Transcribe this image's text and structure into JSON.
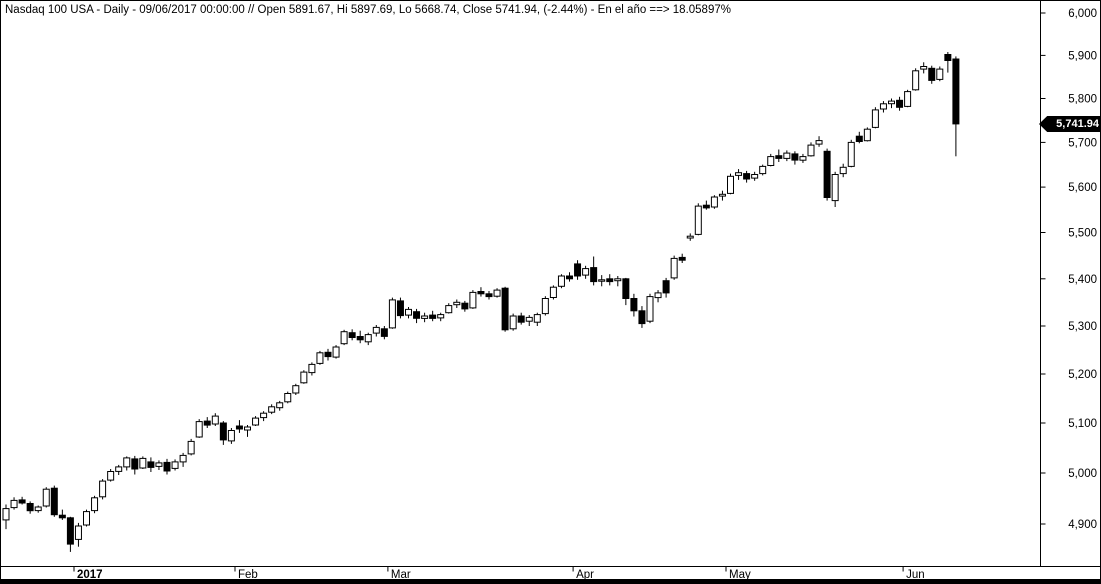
{
  "title": "Nasdaq 100 USA - Daily - 09/06/2017 00:00:00 // Open 5891.67, Hi 5897.69, Lo 5668.74, Close 5741.94, (-2.44%) - En el año ==> 18.05897%",
  "price_tag": "5,741.94",
  "colors": {
    "up_fill": "#ffffff",
    "down_fill": "#000000",
    "stroke": "#000000",
    "tag_bg": "#000000",
    "tag_text": "#ffffff",
    "axis_line": "#000000",
    "bottom_bar": "#000000",
    "background": "#ffffff"
  },
  "y_axis": {
    "side": "right",
    "scale": "logarithmic",
    "ticks": [
      {
        "label": "6,000",
        "value": 6000
      },
      {
        "label": "5,900",
        "value": 5900
      },
      {
        "label": "5,800",
        "value": 5800
      },
      {
        "label": "5,700",
        "value": 5700
      },
      {
        "label": "5,600",
        "value": 5600
      },
      {
        "label": "5,500",
        "value": 5500
      },
      {
        "label": "5,400",
        "value": 5400
      },
      {
        "label": "5,300",
        "value": 5300
      },
      {
        "label": "5,200",
        "value": 5200
      },
      {
        "label": "5,100",
        "value": 5100
      },
      {
        "label": "5,000",
        "value": 5000
      },
      {
        "label": "4,900",
        "value": 4900
      }
    ]
  },
  "x_axis": {
    "labels": [
      {
        "label": "2017",
        "index": 9,
        "bold": true
      },
      {
        "label": "Feb",
        "index": 29,
        "bold": false
      },
      {
        "label": "Mar",
        "index": 48,
        "bold": false
      },
      {
        "label": "Apr",
        "index": 71,
        "bold": false
      },
      {
        "label": "May",
        "index": 90,
        "bold": false
      },
      {
        "label": "Jun",
        "index": 112,
        "bold": false
      }
    ]
  },
  "chart_data": {
    "type": "candlestick",
    "symbol": "Nasdaq 100 USA",
    "timeframe": "Daily",
    "scale": "logarithmic",
    "ylim": [
      4840,
      6000
    ],
    "grid": false,
    "last_quote": {
      "date": "09/06/2017 00:00:00",
      "open": 5891.67,
      "high": 5897.69,
      "low": 5668.74,
      "close": 5741.94,
      "change_pct": -2.44,
      "ytd_pct": 18.05897
    },
    "ohlc": [
      [
        "2016-12-19",
        4908,
        4938,
        4890,
        4930
      ],
      [
        "2016-12-20",
        4932,
        4952,
        4928,
        4946
      ],
      [
        "2016-12-21",
        4947,
        4953,
        4938,
        4941
      ],
      [
        "2016-12-22",
        4940,
        4944,
        4920,
        4926
      ],
      [
        "2016-12-23",
        4926,
        4936,
        4922,
        4933
      ],
      [
        "2016-12-27",
        4935,
        4972,
        4932,
        4968
      ],
      [
        "2016-12-28",
        4970,
        4975,
        4914,
        4918
      ],
      [
        "2016-12-29",
        4917,
        4928,
        4908,
        4912
      ],
      [
        "2016-12-30",
        4912,
        4914,
        4846,
        4861
      ],
      [
        "2017-01-03",
        4870,
        4902,
        4856,
        4896
      ],
      [
        "2017-01-04",
        4898,
        4928,
        4895,
        4924
      ],
      [
        "2017-01-05",
        4926,
        4955,
        4921,
        4951
      ],
      [
        "2017-01-06",
        4953,
        4988,
        4948,
        4984
      ],
      [
        "2017-01-09",
        4986,
        5008,
        4983,
        5003
      ],
      [
        "2017-01-10",
        5003,
        5016,
        4996,
        5012
      ],
      [
        "2017-01-11",
        5012,
        5033,
        5005,
        5030
      ],
      [
        "2017-01-12",
        5028,
        5034,
        4997,
        5008
      ],
      [
        "2017-01-13",
        5010,
        5033,
        5008,
        5029
      ],
      [
        "2017-01-17",
        5022,
        5031,
        5002,
        5011
      ],
      [
        "2017-01-18",
        5013,
        5025,
        5006,
        5020
      ],
      [
        "2017-01-19",
        5021,
        5028,
        4997,
        5004
      ],
      [
        "2017-01-20",
        5009,
        5027,
        5005,
        5022
      ],
      [
        "2017-01-23",
        5022,
        5040,
        5012,
        5035
      ],
      [
        "2017-01-24",
        5038,
        5068,
        5035,
        5063
      ],
      [
        "2017-01-25",
        5072,
        5108,
        5070,
        5103
      ],
      [
        "2017-01-26",
        5104,
        5112,
        5090,
        5096
      ],
      [
        "2017-01-27",
        5098,
        5120,
        5094,
        5114
      ],
      [
        "2017-01-30",
        5100,
        5104,
        5056,
        5066
      ],
      [
        "2017-01-31",
        5064,
        5090,
        5058,
        5085
      ],
      [
        "2017-02-01",
        5094,
        5106,
        5080,
        5088
      ],
      [
        "2017-02-02",
        5086,
        5096,
        5072,
        5092
      ],
      [
        "2017-02-03",
        5096,
        5114,
        5094,
        5110
      ],
      [
        "2017-02-06",
        5111,
        5124,
        5104,
        5120
      ],
      [
        "2017-02-07",
        5122,
        5138,
        5118,
        5133
      ],
      [
        "2017-02-08",
        5131,
        5145,
        5125,
        5141
      ],
      [
        "2017-02-09",
        5143,
        5164,
        5140,
        5160
      ],
      [
        "2017-02-10",
        5161,
        5180,
        5157,
        5176
      ],
      [
        "2017-02-13",
        5182,
        5208,
        5180,
        5204
      ],
      [
        "2017-02-14",
        5203,
        5224,
        5197,
        5220
      ],
      [
        "2017-02-15",
        5222,
        5248,
        5219,
        5244
      ],
      [
        "2017-02-16",
        5245,
        5252,
        5228,
        5236
      ],
      [
        "2017-02-17",
        5235,
        5260,
        5232,
        5256
      ],
      [
        "2017-02-21",
        5263,
        5292,
        5260,
        5288
      ],
      [
        "2017-02-22",
        5286,
        5293,
        5270,
        5276
      ],
      [
        "2017-02-23",
        5278,
        5290,
        5264,
        5271
      ],
      [
        "2017-02-24",
        5267,
        5286,
        5260,
        5282
      ],
      [
        "2017-02-27",
        5285,
        5302,
        5278,
        5297
      ],
      [
        "2017-02-28",
        5294,
        5300,
        5272,
        5278
      ],
      [
        "2017-03-01",
        5296,
        5360,
        5294,
        5355
      ],
      [
        "2017-03-02",
        5353,
        5360,
        5316,
        5322
      ],
      [
        "2017-03-03",
        5323,
        5340,
        5316,
        5335
      ],
      [
        "2017-03-06",
        5330,
        5336,
        5306,
        5316
      ],
      [
        "2017-03-07",
        5316,
        5328,
        5308,
        5321
      ],
      [
        "2017-03-08",
        5323,
        5332,
        5310,
        5316
      ],
      [
        "2017-03-09",
        5317,
        5328,
        5310,
        5324
      ],
      [
        "2017-03-10",
        5328,
        5348,
        5326,
        5343
      ],
      [
        "2017-03-13",
        5345,
        5356,
        5338,
        5350
      ],
      [
        "2017-03-14",
        5348,
        5353,
        5330,
        5336
      ],
      [
        "2017-03-15",
        5338,
        5376,
        5336,
        5371
      ],
      [
        "2017-03-16",
        5373,
        5382,
        5362,
        5368
      ],
      [
        "2017-03-17",
        5368,
        5374,
        5356,
        5362
      ],
      [
        "2017-03-20",
        5363,
        5380,
        5360,
        5376
      ],
      [
        "2017-03-21",
        5380,
        5383,
        5288,
        5292
      ],
      [
        "2017-03-22",
        5294,
        5326,
        5290,
        5321
      ],
      [
        "2017-03-23",
        5321,
        5328,
        5303,
        5308
      ],
      [
        "2017-03-24",
        5310,
        5323,
        5300,
        5318
      ],
      [
        "2017-03-27",
        5308,
        5328,
        5300,
        5324
      ],
      [
        "2017-03-28",
        5326,
        5363,
        5322,
        5358
      ],
      [
        "2017-03-29",
        5360,
        5386,
        5356,
        5382
      ],
      [
        "2017-03-30",
        5384,
        5410,
        5380,
        5406
      ],
      [
        "2017-03-31",
        5406,
        5414,
        5394,
        5400
      ],
      [
        "2017-04-03",
        5432,
        5440,
        5398,
        5406
      ],
      [
        "2017-04-04",
        5408,
        5428,
        5400,
        5422
      ],
      [
        "2017-04-05",
        5424,
        5448,
        5386,
        5394
      ],
      [
        "2017-04-06",
        5396,
        5408,
        5384,
        5398
      ],
      [
        "2017-04-07",
        5400,
        5410,
        5386,
        5394
      ],
      [
        "2017-04-10",
        5396,
        5406,
        5384,
        5400
      ],
      [
        "2017-04-11",
        5400,
        5402,
        5344,
        5358
      ],
      [
        "2017-04-12",
        5358,
        5368,
        5320,
        5332
      ],
      [
        "2017-04-13",
        5332,
        5342,
        5296,
        5305
      ],
      [
        "2017-04-17",
        5310,
        5368,
        5306,
        5362
      ],
      [
        "2017-04-18",
        5360,
        5376,
        5350,
        5370
      ],
      [
        "2017-04-19",
        5396,
        5402,
        5360,
        5370
      ],
      [
        "2017-04-20",
        5402,
        5450,
        5398,
        5444
      ],
      [
        "2017-04-21",
        5446,
        5454,
        5434,
        5440
      ],
      [
        "2017-04-24",
        5488,
        5498,
        5482,
        5492
      ],
      [
        "2017-04-25",
        5496,
        5564,
        5494,
        5558
      ],
      [
        "2017-04-26",
        5560,
        5570,
        5550,
        5554
      ],
      [
        "2017-04-27",
        5556,
        5582,
        5552,
        5578
      ],
      [
        "2017-04-28",
        5580,
        5592,
        5570,
        5584
      ],
      [
        "2017-05-01",
        5586,
        5630,
        5584,
        5624
      ],
      [
        "2017-05-02",
        5626,
        5640,
        5616,
        5632
      ],
      [
        "2017-05-03",
        5630,
        5636,
        5610,
        5618
      ],
      [
        "2017-05-04",
        5620,
        5634,
        5614,
        5628
      ],
      [
        "2017-05-05",
        5630,
        5650,
        5626,
        5646
      ],
      [
        "2017-05-08",
        5648,
        5674,
        5646,
        5668
      ],
      [
        "2017-05-09",
        5670,
        5684,
        5656,
        5664
      ],
      [
        "2017-05-10",
        5664,
        5682,
        5658,
        5676
      ],
      [
        "2017-05-11",
        5674,
        5680,
        5650,
        5660
      ],
      [
        "2017-05-12",
        5660,
        5674,
        5654,
        5668
      ],
      [
        "2017-05-15",
        5670,
        5700,
        5668,
        5694
      ],
      [
        "2017-05-16",
        5696,
        5714,
        5690,
        5704
      ],
      [
        "2017-05-17",
        5680,
        5686,
        5570,
        5577
      ],
      [
        "2017-05-18",
        5570,
        5634,
        5556,
        5628
      ],
      [
        "2017-05-19",
        5630,
        5652,
        5622,
        5644
      ],
      [
        "2017-05-22",
        5646,
        5706,
        5644,
        5700
      ],
      [
        "2017-05-23",
        5714,
        5724,
        5698,
        5702
      ],
      [
        "2017-05-24",
        5704,
        5734,
        5702,
        5730
      ],
      [
        "2017-05-25",
        5734,
        5780,
        5732,
        5774
      ],
      [
        "2017-05-26",
        5776,
        5794,
        5768,
        5788
      ],
      [
        "2017-05-30",
        5788,
        5800,
        5778,
        5794
      ],
      [
        "2017-05-31",
        5796,
        5804,
        5772,
        5780
      ],
      [
        "2017-06-01",
        5782,
        5820,
        5780,
        5816
      ],
      [
        "2017-06-02",
        5820,
        5870,
        5818,
        5864
      ],
      [
        "2017-06-05",
        5868,
        5884,
        5858,
        5874
      ],
      [
        "2017-06-06",
        5870,
        5876,
        5834,
        5842
      ],
      [
        "2017-06-07",
        5844,
        5874,
        5840,
        5868
      ],
      [
        "2017-06-08",
        5902,
        5908,
        5860,
        5888
      ],
      [
        "2017-06-09",
        5891.67,
        5897.69,
        5668.74,
        5741.94
      ]
    ]
  }
}
